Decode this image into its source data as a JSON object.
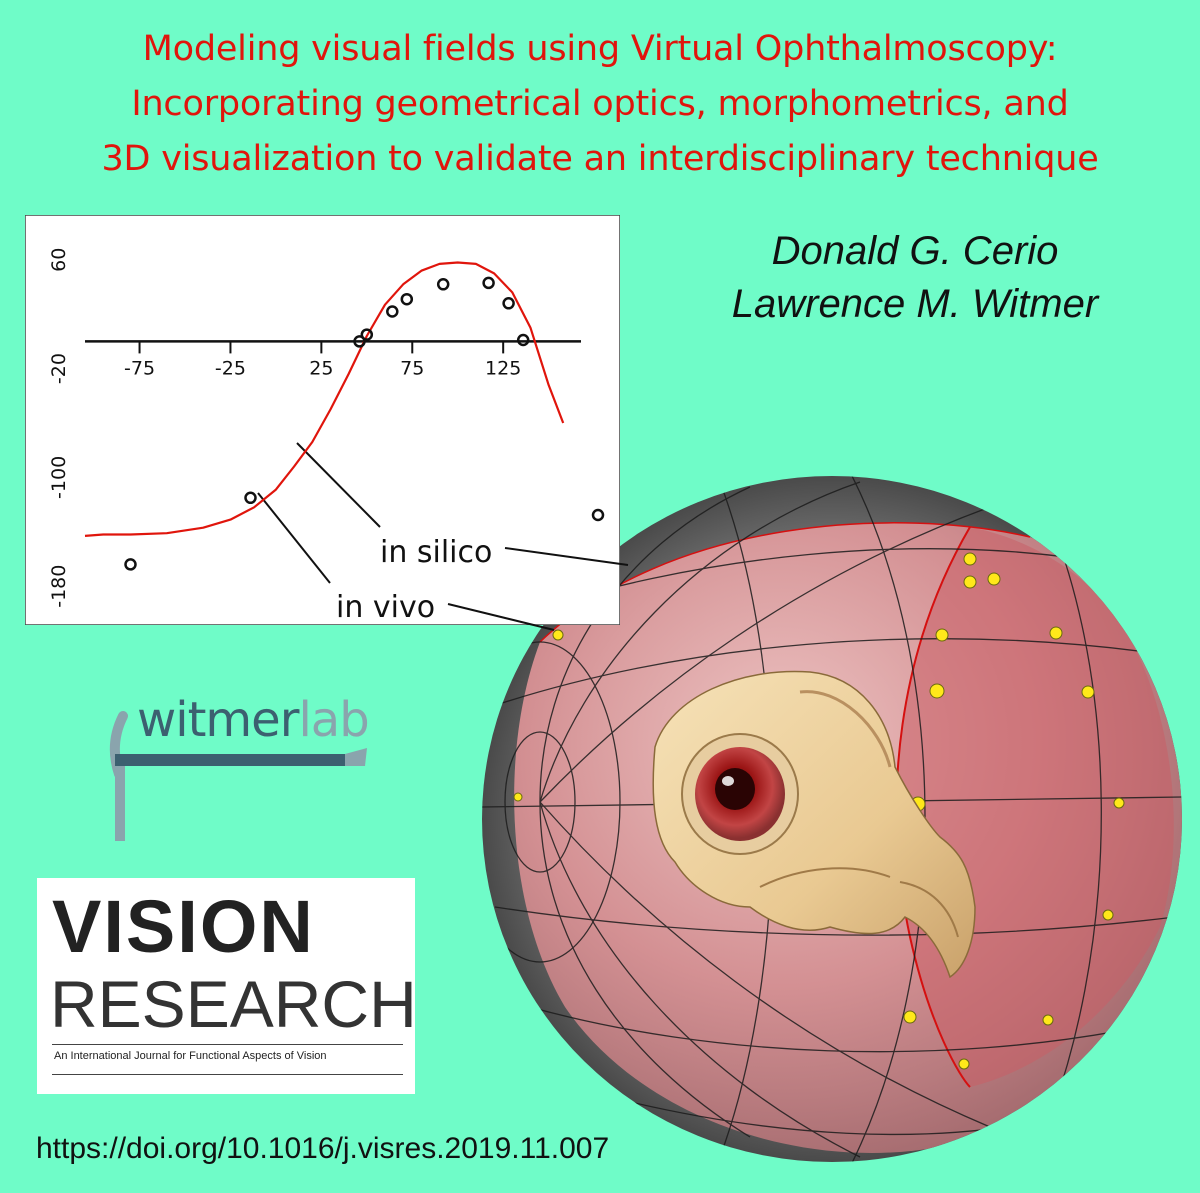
{
  "title": {
    "line1": "Modeling visual fields using Virtual Ophthalmoscopy:",
    "line2": "Incorporating geometrical optics, morphometrics, and",
    "line3": "3D visualization to validate an interdisciplinary technique"
  },
  "authors": [
    "Donald G. Cerio",
    "Lawrence M. Witmer"
  ],
  "doi": "https://doi.org/10.1016/j.visres.2019.11.007",
  "journal": {
    "word1": "VISION",
    "word2": "RESEARCH",
    "tagline": "An International Journal for Functional Aspects of Vision"
  },
  "logo": {
    "part1": "witmer",
    "part2": "lab"
  },
  "annotations": {
    "silico": "in silico",
    "vivo": "in vivo"
  },
  "colors": {
    "background": "#6ffcc8",
    "title": "#e0150c",
    "curve": "#e0150c",
    "sphere": "#d98f95"
  },
  "chart_data": {
    "type": "scatter",
    "title": "",
    "xlabel": "",
    "ylabel": "",
    "xlim": [
      -105,
      170
    ],
    "ylim": [
      -185,
      65
    ],
    "x_ticks": [
      -75,
      -25,
      25,
      75,
      125
    ],
    "y_ticks": [
      60,
      -20,
      -100,
      -180
    ],
    "series": [
      {
        "type": "line",
        "x": [
          -105,
          -95,
          -80,
          -60,
          -40,
          -25,
          -12,
          0,
          10,
          20,
          30,
          40,
          50,
          60,
          70,
          80,
          90,
          100,
          110,
          120,
          130,
          140,
          150,
          158
        ],
        "y": [
          -143,
          -142,
          -142,
          -141,
          -137,
          -131,
          -122,
          -109,
          -92,
          -74,
          -50,
          -24,
          4,
          27,
          42,
          52,
          57,
          58,
          57,
          50,
          36,
          10,
          -32,
          -60
        ]
      },
      {
        "type": "scatter",
        "x": [
          -80,
          -14,
          46,
          50,
          64,
          72,
          92,
          117,
          128,
          136
        ],
        "y": [
          -164,
          -115,
          0,
          5,
          22,
          31,
          42,
          43,
          28,
          1
        ]
      }
    ],
    "outside_point": {
      "x": 188,
      "y": -130
    }
  }
}
